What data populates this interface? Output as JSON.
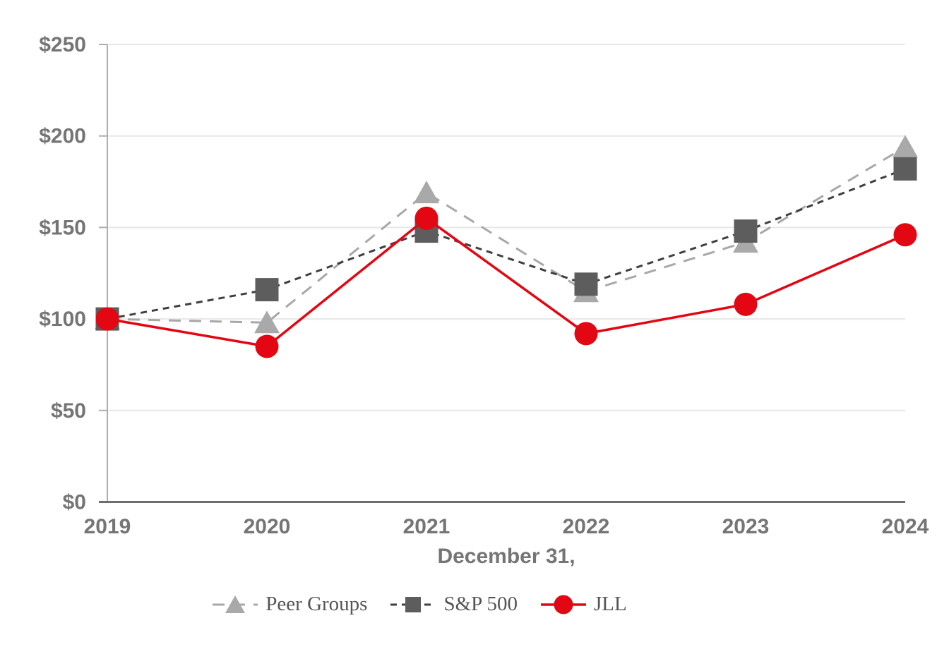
{
  "chart_data": {
    "type": "line",
    "title": "",
    "xlabel": "December 31,",
    "ylabel": "",
    "x_categories": [
      "2019",
      "2020",
      "2021",
      "2022",
      "2023",
      "2024"
    ],
    "y_tick_values": [
      0,
      50,
      100,
      150,
      200,
      250
    ],
    "y_tick_labels": [
      "$0",
      "$50",
      "$100",
      "$150",
      "$200",
      "$250"
    ],
    "ylim": [
      0,
      250
    ],
    "grid": "horizontal-only",
    "legend_position": "bottom-center",
    "series": [
      {
        "name": "Peer Groups",
        "marker": "triangle",
        "line_style": "dashed-long",
        "color": "#a8a8a8",
        "marker_color": "#a9a9a9",
        "values": [
          100,
          98,
          169,
          115,
          142,
          194
        ]
      },
      {
        "name": "S&P 500",
        "marker": "square",
        "line_style": "dashed",
        "color": "#3f3f3f",
        "marker_color": "#5d5d5d",
        "values": [
          100,
          116,
          148,
          119,
          148,
          182
        ]
      },
      {
        "name": "JLL",
        "marker": "circle",
        "line_style": "solid",
        "color": "#e30613",
        "marker_color": "#e30613",
        "values": [
          100,
          85,
          155,
          92,
          108,
          146
        ]
      }
    ],
    "style_colors": {
      "gridline": "#e7e7e7",
      "y_axis": "#aeaeae",
      "x_axis": "#6e6e6e",
      "axis_text": "#757575",
      "legend_text": "#555555"
    }
  }
}
